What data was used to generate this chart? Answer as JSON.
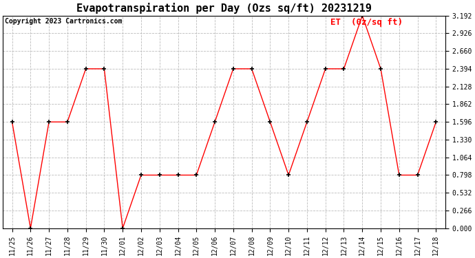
{
  "title": "Evapotranspiration per Day (Ozs sq/ft) 20231219",
  "copyright": "Copyright 2023 Cartronics.com",
  "legend_label": "ET  (0z/sq ft)",
  "x_labels": [
    "11/25",
    "11/26",
    "11/27",
    "11/28",
    "11/29",
    "11/30",
    "12/01",
    "12/02",
    "12/03",
    "12/04",
    "12/05",
    "12/06",
    "12/07",
    "12/08",
    "12/09",
    "12/10",
    "12/11",
    "12/12",
    "12/13",
    "12/14",
    "12/15",
    "12/16",
    "12/17",
    "12/18"
  ],
  "y_values": [
    1.596,
    0.0,
    1.596,
    1.596,
    2.394,
    2.394,
    0.0,
    0.798,
    0.798,
    0.798,
    0.798,
    1.596,
    2.394,
    2.394,
    1.596,
    0.798,
    1.596,
    2.394,
    2.394,
    3.192,
    2.394,
    0.798,
    0.798,
    1.596
  ],
  "line_color": "red",
  "marker_color": "black",
  "marker": "+",
  "ylim": [
    0.0,
    3.192
  ],
  "yticks": [
    0.0,
    0.266,
    0.532,
    0.798,
    1.064,
    1.33,
    1.596,
    1.862,
    2.128,
    2.394,
    2.66,
    2.926,
    3.192
  ],
  "background_color": "white",
  "grid_color": "#bbbbbb",
  "title_fontsize": 11,
  "copyright_fontsize": 7,
  "legend_fontsize": 9,
  "tick_fontsize": 7,
  "ytick_fontsize": 7
}
